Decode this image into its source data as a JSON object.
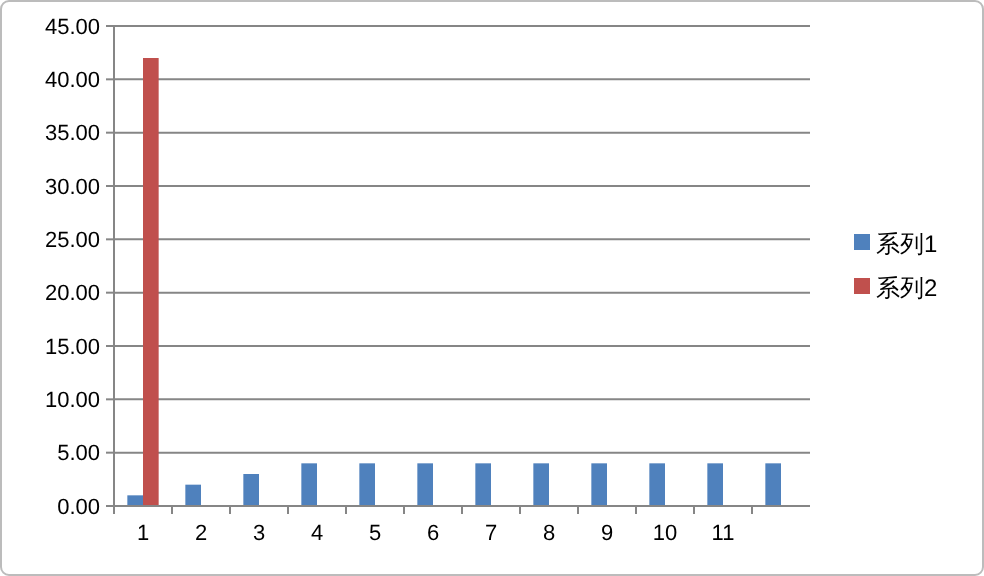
{
  "chart_data": {
    "type": "bar",
    "categories": [
      "1",
      "2",
      "3",
      "4",
      "5",
      "6",
      "7",
      "8",
      "9",
      "10",
      "11",
      null
    ],
    "series": [
      {
        "name": "系列1",
        "color": "#4f81bd",
        "values": [
          1,
          2,
          3,
          4,
          4,
          4,
          4,
          4,
          4,
          4,
          4,
          4
        ]
      },
      {
        "name": "系列2",
        "color": "#c0504d",
        "values": [
          42,
          null,
          null,
          null,
          null,
          null,
          null,
          null,
          null,
          null,
          null,
          null
        ]
      }
    ],
    "ylim": [
      0,
      45
    ],
    "yticks": [
      {
        "value": 0,
        "label": "0.00"
      },
      {
        "value": 5,
        "label": "5.00"
      },
      {
        "value": 10,
        "label": "10.00"
      },
      {
        "value": 15,
        "label": "15.00"
      },
      {
        "value": 20,
        "label": "20.00"
      },
      {
        "value": 25,
        "label": "25.00"
      },
      {
        "value": 30,
        "label": "30.00"
      },
      {
        "value": 35,
        "label": "35.00"
      },
      {
        "value": 40,
        "label": "40.00"
      },
      {
        "value": 45,
        "label": "45.00"
      }
    ],
    "grid": "y",
    "legend": "right"
  }
}
